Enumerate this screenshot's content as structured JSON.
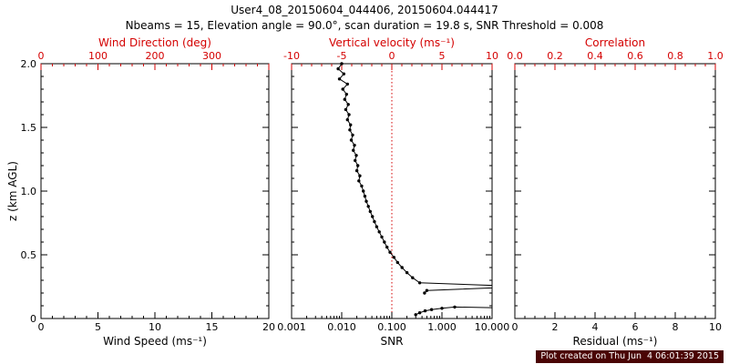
{
  "title": "User4_08_20150604_044406, 20150604.044417",
  "subtitle": "Nbeams = 15,  Elevation angle = 90.0°,  scan duration = 19.8 s,  SNR Threshold = 0.008",
  "ylabel": "z (km AGL)",
  "footer": {
    "caption": "Plot created on Thu Jun  4 06:01:39 2015"
  },
  "colors": {
    "accent_red": "#d40000",
    "line_black": "#000000",
    "footer_bg": "#4a0404",
    "footer_fg": "#ffffff"
  },
  "chart_data": [
    {
      "id": "wind",
      "type": "line",
      "bottom_axis": {
        "label": "Wind Speed (ms⁻¹)",
        "scale": "linear",
        "min": 0,
        "max": 20,
        "major_ticks": [
          0,
          5,
          10,
          15,
          20
        ],
        "tick_labels": [
          "0",
          "5",
          "10",
          "15",
          "20"
        ],
        "minor_step": 1
      },
      "top_axis": {
        "label": "Wind Direction (deg)",
        "scale": "linear",
        "min": 0,
        "max": 400,
        "major_ticks": [
          0,
          100,
          200,
          300,
          400
        ],
        "tick_labels": [
          "0",
          "100",
          "200",
          "300",
          ""
        ],
        "minor_step": 20
      },
      "y_axis": {
        "min": 0,
        "max": 2,
        "major_ticks": [
          0,
          0.5,
          1,
          1.5,
          2
        ],
        "tick_labels": [
          "0",
          "0.5",
          "1.0",
          "1.5",
          "2.0"
        ],
        "minor_step": 0.1,
        "show_tick_labels": true
      },
      "series": []
    },
    {
      "id": "snr",
      "type": "line",
      "bottom_axis": {
        "label": "SNR",
        "scale": "log",
        "min": 0.001,
        "max": 10,
        "major_ticks": [
          0.001,
          0.01,
          0.1,
          1,
          10
        ],
        "tick_labels": [
          "0.001",
          "0.010",
          "0.100",
          "1.000",
          "10.000"
        ]
      },
      "top_axis": {
        "label": "Vertical velocity (ms⁻¹)",
        "scale": "linear",
        "min": -10,
        "max": 10,
        "major_ticks": [
          -10,
          -5,
          0,
          5,
          10
        ],
        "tick_labels": [
          "-10",
          "-5",
          "0",
          "5",
          "10"
        ],
        "minor_step": 1
      },
      "y_axis": {
        "min": 0,
        "max": 2,
        "major_ticks": [
          0,
          0.5,
          1,
          1.5,
          2
        ],
        "tick_labels": [
          "0",
          "0.5",
          "1.0",
          "1.5",
          "2.0"
        ],
        "minor_step": 0.1,
        "show_tick_labels": false
      },
      "reference_line": {
        "axis": "bottom",
        "value": 0.1,
        "style": "dotted",
        "color": "#d40000"
      },
      "series": [
        {
          "name": "snr_profile",
          "marker": "filled-circle",
          "color": "#000000",
          "points": [
            [
              0.01,
              2.0
            ],
            [
              0.0085,
              1.96
            ],
            [
              0.011,
              1.92
            ],
            [
              0.009,
              1.88
            ],
            [
              0.013,
              1.84
            ],
            [
              0.0105,
              1.8
            ],
            [
              0.0125,
              1.76
            ],
            [
              0.0115,
              1.72
            ],
            [
              0.0135,
              1.68
            ],
            [
              0.012,
              1.64
            ],
            [
              0.014,
              1.6
            ],
            [
              0.013,
              1.56
            ],
            [
              0.015,
              1.52
            ],
            [
              0.0145,
              1.48
            ],
            [
              0.0165,
              1.44
            ],
            [
              0.0155,
              1.4
            ],
            [
              0.018,
              1.36
            ],
            [
              0.017,
              1.32
            ],
            [
              0.0195,
              1.28
            ],
            [
              0.0185,
              1.24
            ],
            [
              0.021,
              1.2
            ],
            [
              0.02,
              1.16
            ],
            [
              0.023,
              1.12
            ],
            [
              0.022,
              1.08
            ],
            [
              0.025,
              1.04
            ],
            [
              0.027,
              1.0
            ],
            [
              0.029,
              0.96
            ],
            [
              0.031,
              0.92
            ],
            [
              0.034,
              0.88
            ],
            [
              0.037,
              0.84
            ],
            [
              0.041,
              0.8
            ],
            [
              0.045,
              0.76
            ],
            [
              0.05,
              0.72
            ],
            [
              0.056,
              0.68
            ],
            [
              0.063,
              0.64
            ],
            [
              0.071,
              0.6
            ],
            [
              0.08,
              0.56
            ],
            [
              0.092,
              0.52
            ],
            [
              0.11,
              0.48
            ],
            [
              0.13,
              0.44
            ],
            [
              0.16,
              0.4
            ],
            [
              0.2,
              0.36
            ],
            [
              0.26,
              0.32
            ],
            [
              0.36,
              0.28
            ],
            [
              10.0,
              0.26
            ],
            [
              10.0,
              0.24
            ],
            [
              0.5,
              0.22
            ],
            [
              0.45,
              0.2
            ]
          ]
        },
        {
          "name": "snr_profile_low",
          "marker": "filled-circle",
          "color": "#000000",
          "points": [
            [
              0.3,
              0.03
            ],
            [
              0.36,
              0.045
            ],
            [
              0.46,
              0.06
            ],
            [
              0.62,
              0.07
            ],
            [
              1.0,
              0.08
            ],
            [
              1.8,
              0.09
            ],
            [
              10.0,
              0.085
            ]
          ]
        }
      ]
    },
    {
      "id": "residual",
      "type": "line",
      "bottom_axis": {
        "label": "Residual (ms⁻¹)",
        "scale": "linear",
        "min": 0,
        "max": 10,
        "major_ticks": [
          0,
          2,
          4,
          6,
          8,
          10
        ],
        "tick_labels": [
          "0",
          "2",
          "4",
          "6",
          "8",
          "10"
        ],
        "minor_step": 0.5
      },
      "top_axis": {
        "label": "Correlation",
        "scale": "linear",
        "min": 0,
        "max": 1,
        "major_ticks": [
          0,
          0.2,
          0.4,
          0.6,
          0.8,
          1
        ],
        "tick_labels": [
          "0.0",
          "0.2",
          "0.4",
          "0.6",
          "0.8",
          "1.0"
        ],
        "minor_step": 0.05
      },
      "y_axis": {
        "min": 0,
        "max": 2,
        "major_ticks": [
          0,
          0.5,
          1,
          1.5,
          2
        ],
        "tick_labels": [
          "0",
          "0.5",
          "1.0",
          "1.5",
          "2.0"
        ],
        "minor_step": 0.1,
        "show_tick_labels": false
      },
      "series": []
    }
  ]
}
